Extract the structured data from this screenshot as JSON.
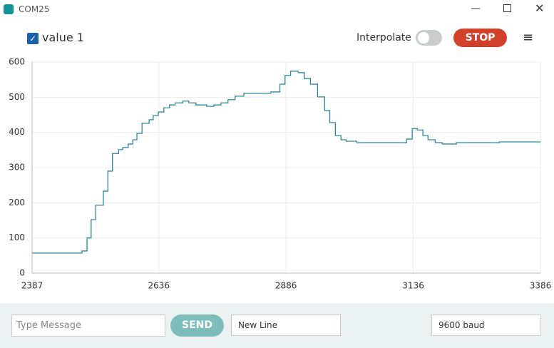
{
  "window": {
    "title": "COM25"
  },
  "toolbar": {
    "interpolate_label": "Interpolate",
    "interpolate": false,
    "stop_button": "STOP"
  },
  "chart_data": {
    "type": "line",
    "interpolate": false,
    "grid": true,
    "x": [
      2387,
      2485,
      2495,
      2503,
      2512,
      2527,
      2536,
      2545,
      2557,
      2565,
      2576,
      2585,
      2593,
      2603,
      2617,
      2625,
      2635,
      2646,
      2657,
      2668,
      2683,
      2695,
      2709,
      2730,
      2744,
      2758,
      2772,
      2786,
      2803,
      2828,
      2856,
      2874,
      2884,
      2895,
      2910,
      2922,
      2934,
      2948,
      2962,
      2972,
      2983,
      2994,
      3004,
      3025,
      3109,
      3123,
      3134,
      3144,
      3155,
      3165,
      3179,
      3193,
      3221,
      3305,
      3386
    ],
    "series": [
      {
        "name": "value 1",
        "color": "#2b86a7",
        "values": [
          57,
          63,
          100,
          152,
          193,
          233,
          290,
          340,
          351,
          357,
          367,
          379,
          397,
          426,
          436,
          448,
          458,
          470,
          478,
          484,
          489,
          484,
          478,
          474,
          478,
          484,
          493,
          503,
          511,
          511,
          515,
          537,
          562,
          574,
          570,
          553,
          537,
          501,
          462,
          428,
          391,
          379,
          375,
          371,
          371,
          381,
          411,
          407,
          391,
          379,
          371,
          367,
          371,
          373,
          373
        ]
      }
    ],
    "xlim": [
      2387,
      3386
    ],
    "xticks": [
      2387,
      2636,
      2886,
      3136,
      3386
    ],
    "ylim": [
      0,
      600
    ],
    "yticks": [
      0,
      100,
      200,
      300,
      400,
      500,
      600
    ]
  },
  "footer": {
    "message_placeholder": "Type Message",
    "send_button": "SEND",
    "line_ending": "New Line",
    "baud_rate": "9600 baud"
  }
}
